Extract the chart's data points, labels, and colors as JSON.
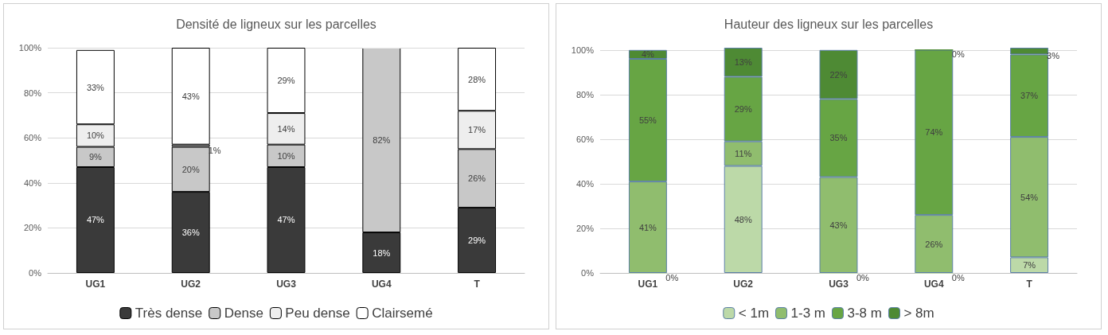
{
  "chart_data": [
    {
      "type": "bar",
      "title": "Densité de ligneux sur les parcelles",
      "stacked": true,
      "categories": [
        "UG1",
        "UG2",
        "UG3",
        "UG4",
        "T"
      ],
      "series": [
        {
          "name": "Très dense",
          "color": "#3a3a3a",
          "values": [
            47,
            36,
            47,
            18,
            29
          ],
          "value_labels": [
            "47%",
            "36%",
            "47%",
            "18%",
            "29%"
          ]
        },
        {
          "name": "Dense",
          "color": "#c8c8c8",
          "values": [
            9,
            20,
            10,
            82,
            26
          ],
          "value_labels": [
            "9%",
            "20%",
            "10%",
            "82%",
            "26%"
          ]
        },
        {
          "name": "Peu dense",
          "color": "#eeeeee",
          "values": [
            10,
            1,
            14,
            0,
            17
          ],
          "value_labels": [
            "10%",
            "1%",
            "14%",
            null,
            "17%"
          ]
        },
        {
          "name": "Clairsemé",
          "color": "#ffffff",
          "values": [
            33,
            43,
            29,
            0,
            28
          ],
          "value_labels": [
            "33%",
            "43%",
            "29%",
            null,
            "28%"
          ]
        }
      ],
      "ylim": [
        0,
        100
      ],
      "yticks": [
        {
          "value": 0,
          "label": "0%"
        },
        {
          "value": 20,
          "label": "20%"
        },
        {
          "value": 40,
          "label": "40%"
        },
        {
          "value": 60,
          "label": "60%"
        },
        {
          "value": 80,
          "label": "80%"
        },
        {
          "value": 100,
          "label": "100%"
        }
      ],
      "grid": "y",
      "legend": "bottom"
    },
    {
      "type": "bar",
      "title": "Hauteur des ligneux sur les parcelles",
      "stacked": true,
      "categories": [
        "UG1",
        "UG2",
        "UG3",
        "UG4",
        "T"
      ],
      "series": [
        {
          "name": "< 1m",
          "color": "#bcd9a8",
          "values": [
            0,
            48,
            0,
            0,
            7
          ],
          "value_labels": [
            "0%",
            "48%",
            "0%",
            "0%",
            "7%"
          ]
        },
        {
          "name": "1-3 m",
          "color": "#90bd6e",
          "values": [
            41,
            11,
            43,
            26,
            54
          ],
          "value_labels": [
            "41%",
            "11%",
            "43%",
            "26%",
            "54%"
          ]
        },
        {
          "name": "3-8 m",
          "color": "#67a544",
          "values": [
            55,
            29,
            35,
            74,
            37
          ],
          "value_labels": [
            "55%",
            "29%",
            "35%",
            "74%",
            "37%"
          ]
        },
        {
          "name": "> 8m",
          "color": "#4e8a34",
          "values": [
            4,
            13,
            22,
            0,
            3
          ],
          "value_labels": [
            "4%",
            "13%",
            "22%",
            "0%",
            "3%"
          ]
        }
      ],
      "ylim": [
        0,
        101
      ],
      "yticks": [
        {
          "value": 0,
          "label": "0%"
        },
        {
          "value": 20,
          "label": "20%"
        },
        {
          "value": 40,
          "label": "40%"
        },
        {
          "value": 60,
          "label": "60%"
        },
        {
          "value": 80,
          "label": "80%"
        },
        {
          "value": 100,
          "label": "100%"
        }
      ],
      "grid": "y",
      "legend": "bottom"
    }
  ]
}
